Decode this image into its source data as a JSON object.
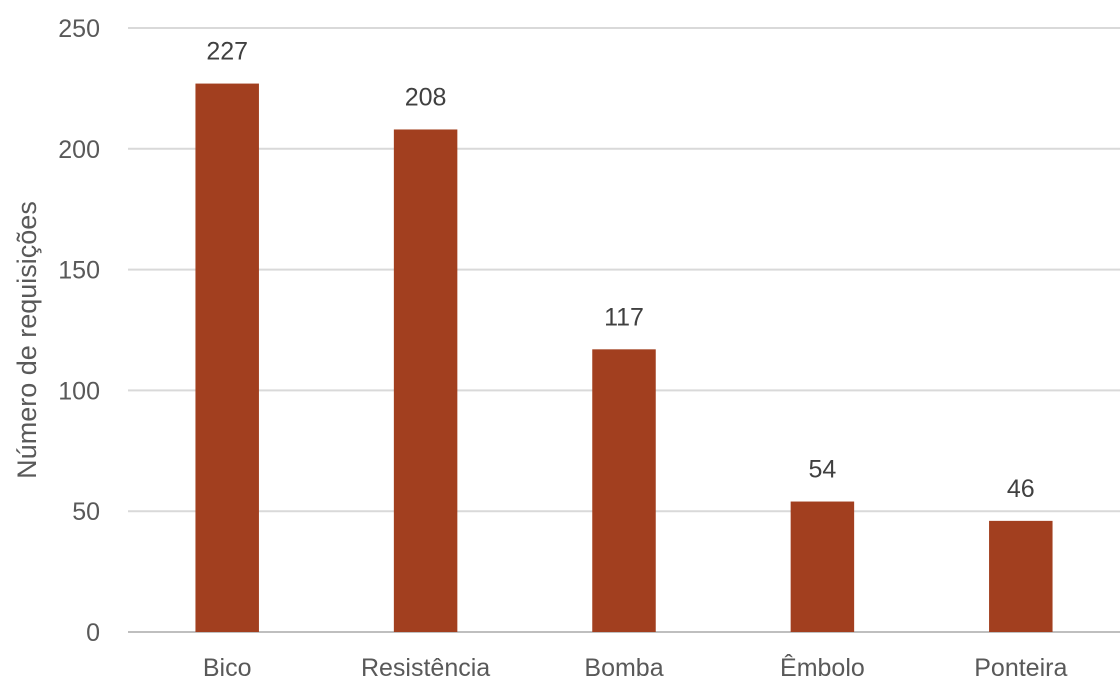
{
  "chart_data": {
    "type": "bar",
    "categories": [
      "Bico",
      "Resistência",
      "Bomba",
      "Êmbolo",
      "Ponteira"
    ],
    "values": [
      227,
      208,
      117,
      54,
      46
    ],
    "data_labels": [
      "227",
      "208",
      "117",
      "54",
      "46"
    ],
    "title": "",
    "xlabel": "",
    "ylabel": "Número de requisições",
    "ylim": [
      0,
      250
    ],
    "yticks": [
      0,
      50,
      100,
      150,
      200,
      250
    ],
    "grid": true,
    "legend": "none",
    "colors": {
      "bar": "#A23F1F",
      "grid": "#D9D9D9",
      "axis": "#BFBFBF"
    }
  }
}
